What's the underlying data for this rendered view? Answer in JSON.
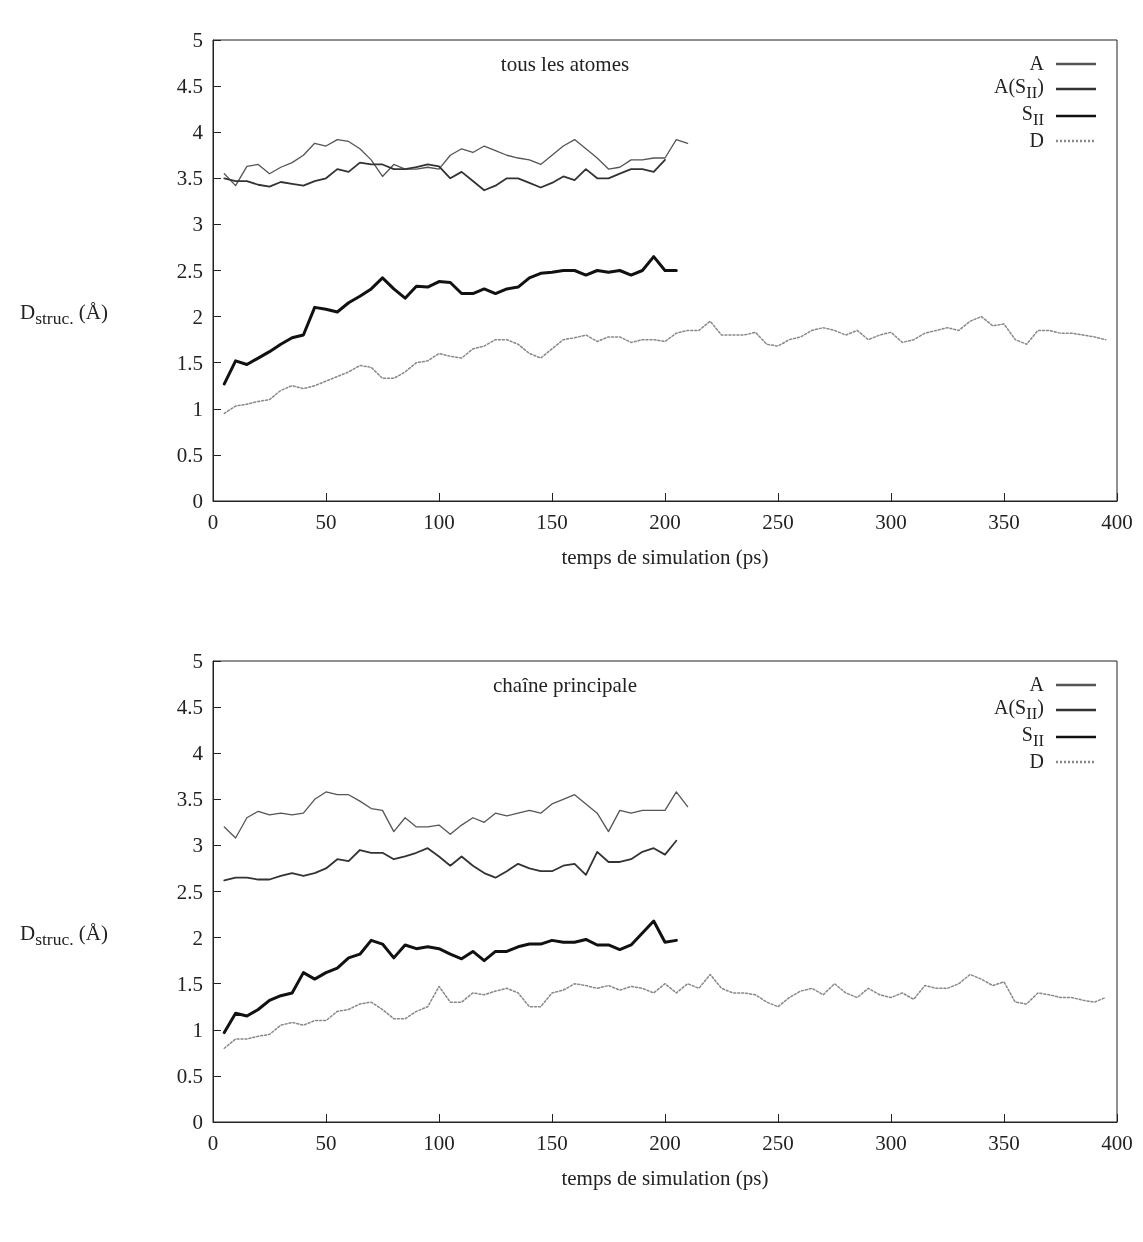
{
  "chart_data": [
    {
      "type": "line",
      "title": "tous les atomes",
      "xlabel": "temps de simulation (ps)",
      "ylabel": "D$_{struc.}$ (Å)",
      "xlim": [
        0,
        400
      ],
      "xticks": [
        0,
        50,
        100,
        150,
        200,
        250,
        300,
        350,
        400
      ],
      "ylim": [
        0,
        5
      ],
      "yticks": [
        0,
        0.5,
        1,
        1.5,
        2,
        2.5,
        3,
        3.5,
        4,
        4.5,
        5
      ],
      "legend": "top right",
      "marker": "none",
      "series": [
        {
          "name": "A",
          "color": "#555555",
          "line_style": "solid",
          "x": [
            5,
            10,
            15,
            20,
            25,
            30,
            35,
            40,
            45,
            50,
            55,
            60,
            65,
            70,
            75,
            80,
            85,
            90,
            95,
            100,
            105,
            110,
            115,
            120,
            125,
            130,
            135,
            140,
            145,
            150,
            155,
            160,
            165,
            170,
            175,
            180,
            185,
            190,
            195,
            200,
            205,
            210
          ],
          "values": [
            3.55,
            3.42,
            3.63,
            3.65,
            3.55,
            3.62,
            3.67,
            3.75,
            3.88,
            3.85,
            3.92,
            3.9,
            3.82,
            3.7,
            3.52,
            3.65,
            3.6,
            3.6,
            3.62,
            3.6,
            3.75,
            3.82,
            3.78,
            3.85,
            3.8,
            3.75,
            3.72,
            3.7,
            3.65,
            3.75,
            3.85,
            3.92,
            3.82,
            3.72,
            3.6,
            3.62,
            3.7,
            3.7,
            3.72,
            3.72,
            3.92,
            3.88
          ]
        },
        {
          "name": "A(S$_{II}$)",
          "color": "#333333",
          "line_style": "solid",
          "x": [
            5,
            10,
            15,
            20,
            25,
            30,
            35,
            40,
            45,
            50,
            55,
            60,
            65,
            70,
            75,
            80,
            85,
            90,
            95,
            100,
            105,
            110,
            115,
            120,
            125,
            130,
            135,
            140,
            145,
            150,
            155,
            160,
            165,
            170,
            175,
            180,
            185,
            190,
            195,
            200
          ],
          "values": [
            3.5,
            3.47,
            3.47,
            3.43,
            3.41,
            3.46,
            3.44,
            3.42,
            3.47,
            3.5,
            3.6,
            3.57,
            3.67,
            3.65,
            3.65,
            3.6,
            3.6,
            3.62,
            3.65,
            3.63,
            3.5,
            3.57,
            3.47,
            3.37,
            3.42,
            3.5,
            3.5,
            3.45,
            3.4,
            3.45,
            3.52,
            3.48,
            3.6,
            3.5,
            3.5,
            3.55,
            3.6,
            3.6,
            3.57,
            3.7
          ]
        },
        {
          "name": "S$_{II}$",
          "color": "#111111",
          "line_style": "solid",
          "x": [
            5,
            10,
            15,
            20,
            25,
            30,
            35,
            40,
            45,
            50,
            55,
            60,
            65,
            70,
            75,
            80,
            85,
            90,
            95,
            100,
            105,
            110,
            115,
            120,
            125,
            130,
            135,
            140,
            145,
            150,
            155,
            160,
            165,
            170,
            175,
            180,
            185,
            190,
            195,
            200,
            205
          ],
          "values": [
            1.27,
            1.52,
            1.48,
            1.55,
            1.62,
            1.7,
            1.77,
            1.8,
            2.1,
            2.08,
            2.05,
            2.15,
            2.22,
            2.3,
            2.42,
            2.3,
            2.2,
            2.33,
            2.32,
            2.38,
            2.37,
            2.25,
            2.25,
            2.3,
            2.25,
            2.3,
            2.32,
            2.42,
            2.47,
            2.48,
            2.5,
            2.5,
            2.45,
            2.5,
            2.48,
            2.5,
            2.45,
            2.5,
            2.65,
            2.5,
            2.5
          ]
        },
        {
          "name": "D",
          "color": "#888888",
          "line_style": "dotted",
          "x": [
            5,
            10,
            15,
            20,
            25,
            30,
            35,
            40,
            45,
            50,
            55,
            60,
            65,
            70,
            75,
            80,
            85,
            90,
            95,
            100,
            105,
            110,
            115,
            120,
            125,
            130,
            135,
            140,
            145,
            150,
            155,
            160,
            165,
            170,
            175,
            180,
            185,
            190,
            195,
            200,
            205,
            210,
            215,
            220,
            225,
            230,
            235,
            240,
            245,
            250,
            255,
            260,
            265,
            270,
            275,
            280,
            285,
            290,
            295,
            300,
            305,
            310,
            315,
            320,
            325,
            330,
            335,
            340,
            345,
            350,
            355,
            360,
            365,
            370,
            375,
            380,
            385,
            390,
            395
          ],
          "values": [
            0.95,
            1.03,
            1.05,
            1.08,
            1.1,
            1.2,
            1.25,
            1.22,
            1.25,
            1.3,
            1.35,
            1.4,
            1.47,
            1.45,
            1.33,
            1.33,
            1.4,
            1.5,
            1.52,
            1.6,
            1.57,
            1.55,
            1.65,
            1.68,
            1.75,
            1.75,
            1.7,
            1.6,
            1.55,
            1.65,
            1.75,
            1.77,
            1.8,
            1.73,
            1.78,
            1.78,
            1.72,
            1.75,
            1.75,
            1.73,
            1.82,
            1.85,
            1.85,
            1.95,
            1.8,
            1.8,
            1.8,
            1.83,
            1.7,
            1.68,
            1.75,
            1.78,
            1.85,
            1.88,
            1.85,
            1.8,
            1.85,
            1.75,
            1.8,
            1.83,
            1.72,
            1.75,
            1.82,
            1.85,
            1.88,
            1.85,
            1.95,
            2.0,
            1.9,
            1.92,
            1.75,
            1.7,
            1.85,
            1.85,
            1.82,
            1.82,
            1.8,
            1.78,
            1.75
          ]
        }
      ]
    },
    {
      "type": "line",
      "title": "chaîne principale",
      "xlabel": "temps de simulation (ps)",
      "ylabel": "D$_{struc.}$ (Å)",
      "xlim": [
        0,
        400
      ],
      "xticks": [
        0,
        50,
        100,
        150,
        200,
        250,
        300,
        350,
        400
      ],
      "ylim": [
        0,
        5
      ],
      "yticks": [
        0,
        0.5,
        1,
        1.5,
        2,
        2.5,
        3,
        3.5,
        4,
        4.5,
        5
      ],
      "legend": "top right",
      "marker": "none",
      "series": [
        {
          "name": "A",
          "color": "#555555",
          "line_style": "solid",
          "x": [
            5,
            10,
            15,
            20,
            25,
            30,
            35,
            40,
            45,
            50,
            55,
            60,
            65,
            70,
            75,
            80,
            85,
            90,
            95,
            100,
            105,
            110,
            115,
            120,
            125,
            130,
            135,
            140,
            145,
            150,
            155,
            160,
            165,
            170,
            175,
            180,
            185,
            190,
            195,
            200,
            205,
            210
          ],
          "values": [
            3.2,
            3.08,
            3.3,
            3.37,
            3.33,
            3.35,
            3.33,
            3.35,
            3.5,
            3.58,
            3.55,
            3.55,
            3.48,
            3.4,
            3.38,
            3.15,
            3.3,
            3.2,
            3.2,
            3.22,
            3.12,
            3.22,
            3.3,
            3.25,
            3.35,
            3.32,
            3.35,
            3.38,
            3.35,
            3.45,
            3.5,
            3.55,
            3.45,
            3.35,
            3.15,
            3.38,
            3.35,
            3.38,
            3.38,
            3.38,
            3.58,
            3.42
          ]
        },
        {
          "name": "A(S$_{II}$)",
          "color": "#333333",
          "line_style": "solid",
          "x": [
            5,
            10,
            15,
            20,
            25,
            30,
            35,
            40,
            45,
            50,
            55,
            60,
            65,
            70,
            75,
            80,
            85,
            90,
            95,
            100,
            105,
            110,
            115,
            120,
            125,
            130,
            135,
            140,
            145,
            150,
            155,
            160,
            165,
            170,
            175,
            180,
            185,
            190,
            195,
            200,
            205
          ],
          "values": [
            2.62,
            2.65,
            2.65,
            2.63,
            2.63,
            2.67,
            2.7,
            2.67,
            2.7,
            2.75,
            2.85,
            2.83,
            2.95,
            2.92,
            2.92,
            2.85,
            2.88,
            2.92,
            2.97,
            2.88,
            2.78,
            2.88,
            2.78,
            2.7,
            2.65,
            2.72,
            2.8,
            2.75,
            2.72,
            2.72,
            2.78,
            2.8,
            2.68,
            2.93,
            2.82,
            2.82,
            2.85,
            2.93,
            2.97,
            2.9,
            3.05
          ]
        },
        {
          "name": "S$_{II}$",
          "color": "#111111",
          "line_style": "solid",
          "x": [
            5,
            10,
            15,
            20,
            25,
            30,
            35,
            40,
            45,
            50,
            55,
            60,
            65,
            70,
            75,
            80,
            85,
            90,
            95,
            100,
            105,
            110,
            115,
            120,
            125,
            130,
            135,
            140,
            145,
            150,
            155,
            160,
            165,
            170,
            175,
            180,
            185,
            190,
            195,
            200,
            205
          ],
          "values": [
            0.97,
            1.18,
            1.15,
            1.22,
            1.32,
            1.37,
            1.4,
            1.62,
            1.55,
            1.62,
            1.67,
            1.78,
            1.82,
            1.97,
            1.93,
            1.78,
            1.92,
            1.88,
            1.9,
            1.88,
            1.82,
            1.77,
            1.85,
            1.75,
            1.85,
            1.85,
            1.9,
            1.93,
            1.93,
            1.97,
            1.95,
            1.95,
            1.98,
            1.92,
            1.92,
            1.87,
            1.92,
            2.05,
            2.18,
            1.95,
            1.97
          ]
        },
        {
          "name": "D",
          "color": "#888888",
          "line_style": "dotted",
          "x": [
            5,
            10,
            15,
            20,
            25,
            30,
            35,
            40,
            45,
            50,
            55,
            60,
            65,
            70,
            75,
            80,
            85,
            90,
            95,
            100,
            105,
            110,
            115,
            120,
            125,
            130,
            135,
            140,
            145,
            150,
            155,
            160,
            165,
            170,
            175,
            180,
            185,
            190,
            195,
            200,
            205,
            210,
            215,
            220,
            225,
            230,
            235,
            240,
            245,
            250,
            255,
            260,
            265,
            270,
            275,
            280,
            285,
            290,
            295,
            300,
            305,
            310,
            315,
            320,
            325,
            330,
            335,
            340,
            345,
            350,
            355,
            360,
            365,
            370,
            375,
            380,
            385,
            390,
            395
          ],
          "values": [
            0.8,
            0.9,
            0.9,
            0.93,
            0.95,
            1.05,
            1.08,
            1.05,
            1.1,
            1.1,
            1.2,
            1.22,
            1.28,
            1.3,
            1.22,
            1.12,
            1.12,
            1.2,
            1.25,
            1.47,
            1.3,
            1.3,
            1.4,
            1.38,
            1.42,
            1.45,
            1.4,
            1.25,
            1.25,
            1.4,
            1.43,
            1.5,
            1.48,
            1.45,
            1.48,
            1.43,
            1.47,
            1.45,
            1.4,
            1.5,
            1.4,
            1.5,
            1.45,
            1.6,
            1.45,
            1.4,
            1.4,
            1.38,
            1.3,
            1.25,
            1.35,
            1.42,
            1.45,
            1.38,
            1.5,
            1.4,
            1.35,
            1.45,
            1.38,
            1.35,
            1.4,
            1.33,
            1.48,
            1.45,
            1.45,
            1.5,
            1.6,
            1.55,
            1.48,
            1.52,
            1.3,
            1.28,
            1.4,
            1.38,
            1.35,
            1.35,
            1.32,
            1.3,
            1.35
          ]
        }
      ]
    }
  ]
}
